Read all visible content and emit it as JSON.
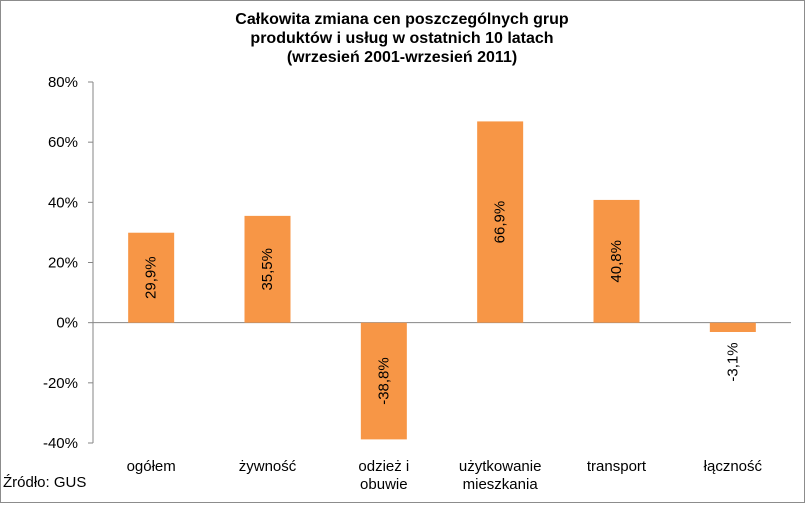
{
  "chart_data": {
    "type": "bar",
    "title": [
      "Całkowita zmiana cen poszczególnych grup",
      "produktów i usług w ostatnich 10 latach",
      "(wrzesień 2001-wrzesień 2011)"
    ],
    "categories": [
      [
        "ogółem"
      ],
      [
        "żywność"
      ],
      [
        "odzież i",
        "obuwie"
      ],
      [
        "użytkowanie",
        "mieszkania"
      ],
      [
        "transport"
      ],
      [
        "łączność"
      ]
    ],
    "values": [
      29.9,
      35.5,
      -38.8,
      66.9,
      40.8,
      -3.1
    ],
    "data_labels": [
      "29,9%",
      "35,5%",
      "-38,8%",
      "66,9%",
      "40,8%",
      "-3,1%"
    ],
    "y_ticks": [
      80,
      60,
      40,
      20,
      0,
      -20,
      -40
    ],
    "y_tick_labels": [
      "80%",
      "60%",
      "40%",
      "20%",
      "0%",
      "-20%",
      "-40%"
    ],
    "ylim": [
      -40,
      80
    ],
    "xlabel": "",
    "ylabel": "",
    "grid": false,
    "bar_color": "#f79646",
    "source": "Źródło:  GUS"
  }
}
